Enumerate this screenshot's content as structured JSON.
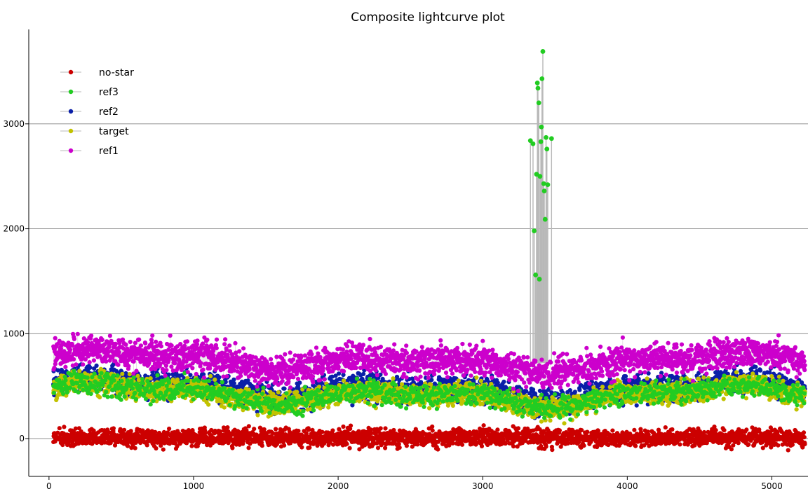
{
  "chart_data": {
    "type": "scatter",
    "title": "Composite lightcurve plot",
    "xlabel": "",
    "ylabel": "",
    "xlim": [
      -140,
      5250
    ],
    "ylim": [
      -360,
      3900
    ],
    "xticks": [
      0,
      1000,
      2000,
      3000,
      4000,
      5000
    ],
    "yticks": [
      0,
      1000,
      2000,
      3000
    ],
    "grid": "horizontal",
    "legend_position": "top-left",
    "n_points": 5200,
    "series": [
      {
        "name": "no-star",
        "color": "#cc0000",
        "baseline": 10,
        "spread": 75,
        "points": []
      },
      {
        "name": "ref3",
        "color": "#22cc22",
        "baseline": 420,
        "spread": 95,
        "spike_points": [
          {
            "x": 3330,
            "y": 2840
          },
          {
            "x": 3348,
            "y": 2810
          },
          {
            "x": 3356,
            "y": 1980
          },
          {
            "x": 3366,
            "y": 1560
          },
          {
            "x": 3372,
            "y": 2520
          },
          {
            "x": 3378,
            "y": 3390
          },
          {
            "x": 3382,
            "y": 3340
          },
          {
            "x": 3388,
            "y": 3200
          },
          {
            "x": 3392,
            "y": 1520
          },
          {
            "x": 3396,
            "y": 2500
          },
          {
            "x": 3402,
            "y": 2830
          },
          {
            "x": 3406,
            "y": 2970
          },
          {
            "x": 3410,
            "y": 3430
          },
          {
            "x": 3416,
            "y": 3690
          },
          {
            "x": 3422,
            "y": 2430
          },
          {
            "x": 3426,
            "y": 2360
          },
          {
            "x": 3432,
            "y": 2090
          },
          {
            "x": 3438,
            "y": 2870
          },
          {
            "x": 3444,
            "y": 2760
          },
          {
            "x": 3450,
            "y": 2420
          },
          {
            "x": 3476,
            "y": 2860
          }
        ]
      },
      {
        "name": "ref2",
        "color": "#0a1fa8",
        "baseline": 470,
        "spread": 110
      },
      {
        "name": "target",
        "color": "#c2c200",
        "baseline": 420,
        "spread": 95
      },
      {
        "name": "ref1",
        "color": "#cc00cc",
        "baseline": 740,
        "spread": 130
      }
    ]
  }
}
